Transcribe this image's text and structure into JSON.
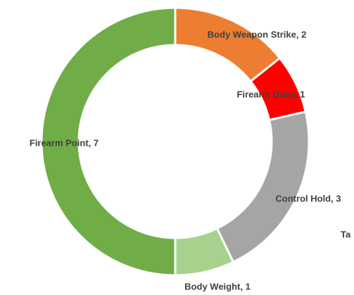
{
  "chart_data": {
    "type": "donut",
    "categories": [
      "Body Weapon Strike",
      "Firearm Draw",
      "Control Hold",
      "Ta",
      "Body Weight",
      "Firearm Point"
    ],
    "values": [
      2,
      1,
      3,
      0,
      1,
      7
    ],
    "value_labels": [
      "Body Weapon Strike, 2",
      "Firearm Draw, 1",
      "Control Hold, 3",
      "Ta",
      "Body Weight, 1",
      "Firearm Point, 7"
    ],
    "colors": [
      "#ed7d31",
      "#ff0000",
      "#a5a5a5",
      "#ffc000",
      "#a9d18e",
      "#70ad47"
    ]
  }
}
